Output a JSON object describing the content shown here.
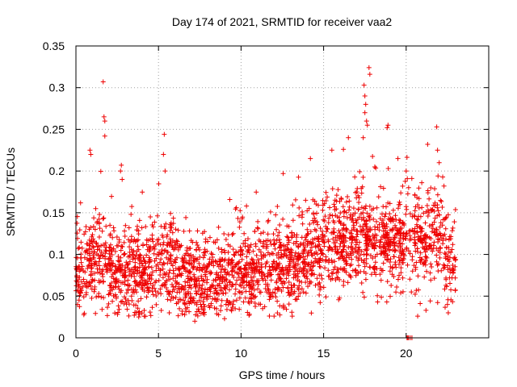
{
  "chart_data": {
    "type": "scatter",
    "title": "Day 174 of 2021, SRMTID for receiver vaa2",
    "xlabel": "GPS time / hours",
    "ylabel": "SRMTID / TECUs",
    "xlim": [
      0,
      25
    ],
    "ylim": [
      0,
      0.35
    ],
    "xticks": [
      0,
      5,
      10,
      15,
      20
    ],
    "xtick_labels": [
      "0",
      "5",
      "10",
      "15",
      "20"
    ],
    "yticks": [
      0,
      0.05,
      0.1,
      0.15,
      0.2,
      0.25,
      0.3,
      0.35
    ],
    "ytick_labels": [
      "0",
      "0.05",
      "0.1",
      "0.15",
      "0.2",
      "0.25",
      "0.3",
      "0.35"
    ],
    "grid": true,
    "marker": "plus",
    "series_color": "#ee0000",
    "generated_cloud": {
      "description_of_trend": "baseline SRMTID vs hour",
      "count": 2600,
      "t_start": 0.0,
      "t_end": 23.0,
      "baseline": [
        [
          0,
          0.075
        ],
        [
          1,
          0.095
        ],
        [
          2,
          0.085
        ],
        [
          3,
          0.07
        ],
        [
          4,
          0.08
        ],
        [
          5,
          0.09
        ],
        [
          6,
          0.08
        ],
        [
          7,
          0.065
        ],
        [
          8,
          0.07
        ],
        [
          9,
          0.075
        ],
        [
          10,
          0.08
        ],
        [
          11,
          0.085
        ],
        [
          12,
          0.085
        ],
        [
          13,
          0.09
        ],
        [
          14,
          0.1
        ],
        [
          15,
          0.105
        ],
        [
          16,
          0.115
        ],
        [
          17,
          0.12
        ],
        [
          18,
          0.12
        ],
        [
          19,
          0.115
        ],
        [
          20,
          0.12
        ],
        [
          21,
          0.12
        ],
        [
          22,
          0.125
        ],
        [
          23,
          0.08
        ]
      ],
      "spread": 0.035,
      "seed": 174
    },
    "points": [
      {
        "x": 1.65,
        "y": 0.307
      },
      {
        "x": 1.7,
        "y": 0.265
      },
      {
        "x": 1.75,
        "y": 0.26
      },
      {
        "x": 1.75,
        "y": 0.242
      },
      {
        "x": 0.85,
        "y": 0.225
      },
      {
        "x": 0.9,
        "y": 0.22
      },
      {
        "x": 2.75,
        "y": 0.207
      },
      {
        "x": 2.7,
        "y": 0.2
      },
      {
        "x": 2.8,
        "y": 0.19
      },
      {
        "x": 5.35,
        "y": 0.244
      },
      {
        "x": 5.3,
        "y": 0.22
      },
      {
        "x": 5.4,
        "y": 0.2
      },
      {
        "x": 17.45,
        "y": 0.303
      },
      {
        "x": 17.5,
        "y": 0.29
      },
      {
        "x": 17.55,
        "y": 0.28
      },
      {
        "x": 17.5,
        "y": 0.27
      },
      {
        "x": 17.6,
        "y": 0.26
      },
      {
        "x": 17.65,
        "y": 0.255
      },
      {
        "x": 17.75,
        "y": 0.324
      },
      {
        "x": 17.8,
        "y": 0.316
      },
      {
        "x": 17.4,
        "y": 0.24
      },
      {
        "x": 18.9,
        "y": 0.255
      },
      {
        "x": 18.85,
        "y": 0.252
      },
      {
        "x": 16.5,
        "y": 0.24
      },
      {
        "x": 16.2,
        "y": 0.226
      },
      {
        "x": 15.5,
        "y": 0.225
      },
      {
        "x": 14.2,
        "y": 0.215
      },
      {
        "x": 21.85,
        "y": 0.253
      },
      {
        "x": 21.3,
        "y": 0.232
      },
      {
        "x": 21.9,
        "y": 0.225
      },
      {
        "x": 22.0,
        "y": 0.21
      },
      {
        "x": 19.5,
        "y": 0.215
      },
      {
        "x": 20.0,
        "y": 0.2
      },
      {
        "x": 12.55,
        "y": 0.197
      },
      {
        "x": 18.1,
        "y": 0.205
      },
      {
        "x": 20.05,
        "y": 0.0
      },
      {
        "x": 20.1,
        "y": 0.0
      },
      {
        "x": 20.15,
        "y": 0.0
      },
      {
        "x": 20.25,
        "y": 0.0
      },
      {
        "x": 20.35,
        "y": 0.0
      },
      {
        "x": 21.2,
        "y": 0.033
      },
      {
        "x": 22.55,
        "y": 0.03
      },
      {
        "x": 22.5,
        "y": 0.04
      },
      {
        "x": 9.0,
        "y": 0.023
      },
      {
        "x": 7.2,
        "y": 0.02
      },
      {
        "x": 12.0,
        "y": 0.026
      },
      {
        "x": 13.1,
        "y": 0.026
      },
      {
        "x": 0.1,
        "y": 0.04
      },
      {
        "x": 3.85,
        "y": 0.028
      }
    ]
  }
}
